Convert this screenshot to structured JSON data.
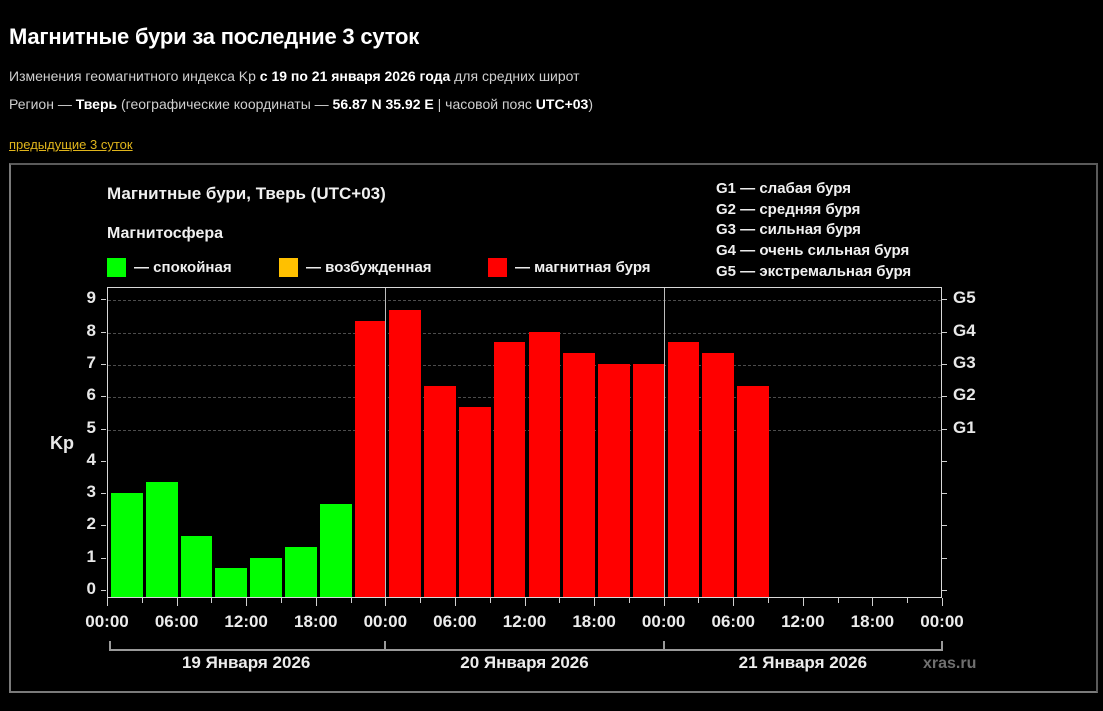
{
  "header": {
    "title": "Магнитные бури за последние 3 суток",
    "line1": {
      "pre": "Изменения геомагнитного индекса Kp ",
      "bold": "с 19 по 21 января 2026 года",
      "post": " для средних широт"
    },
    "line2": {
      "pre": "Регион — ",
      "region": "Тверь",
      "mid": " (географические координаты — ",
      "coords": "56.87 N 35.92 E",
      "mid2": " | часовой пояс ",
      "tz": "UTC+03",
      "post": ")"
    },
    "prev_link": "предыдущие 3 суток"
  },
  "legend": {
    "section_label": "Магнитосфера",
    "items": [
      {
        "label": "— спокойная",
        "color": "#00ff00"
      },
      {
        "label": "— возбужденная",
        "color": "#ffc000"
      },
      {
        "label": "— магнитная буря",
        "color": "#ff0000"
      }
    ],
    "gscale": [
      "G1 — слабая буря",
      "G2 — средняя буря",
      "G3 — сильная буря",
      "G4 — очень сильная буря",
      "G5 — экстремальная буря"
    ]
  },
  "watermark": "xras.ru",
  "chart_data": {
    "type": "bar",
    "title": "Магнитные бури, Тверь (UTC+03)",
    "xlabel": "",
    "ylabel": "Kp",
    "ylim": [
      0,
      9
    ],
    "yticks": [
      "0",
      "1",
      "2",
      "3",
      "4",
      "5",
      "6",
      "7",
      "8",
      "9"
    ],
    "right_axis": [
      {
        "label": "G1",
        "kp": 5
      },
      {
        "label": "G2",
        "kp": 6
      },
      {
        "label": "G3",
        "kp": 7
      },
      {
        "label": "G4",
        "kp": 8
      },
      {
        "label": "G5",
        "kp": 9
      }
    ],
    "grid": "dashed horizontal at Kp 5–9",
    "xtick_labels": [
      "00:00",
      "06:00",
      "12:00",
      "18:00",
      "00:00",
      "06:00",
      "12:00",
      "18:00",
      "00:00",
      "06:00",
      "12:00",
      "18:00",
      "00:00"
    ],
    "days": [
      "19 Января 2026",
      "20 Января 2026",
      "21 Января 2026"
    ],
    "interval_hours": 3,
    "categories": [
      "19.01 00-03",
      "19.01 03-06",
      "19.01 06-09",
      "19.01 09-12",
      "19.01 12-15",
      "19.01 15-18",
      "19.01 18-21",
      "19.01 21-24",
      "20.01 00-03",
      "20.01 03-06",
      "20.01 06-09",
      "20.01 09-12",
      "20.01 12-15",
      "20.01 15-18",
      "20.01 18-21",
      "20.01 21-24",
      "21.01 00-03",
      "21.01 03-06",
      "21.01 06-09"
    ],
    "values": [
      3.0,
      3.33,
      1.67,
      0.67,
      1.0,
      1.33,
      2.67,
      8.33,
      8.67,
      6.33,
      5.67,
      7.67,
      8.0,
      7.33,
      7.0,
      7.0,
      7.67,
      7.33,
      6.33
    ],
    "status": [
      "calm",
      "calm",
      "calm",
      "calm",
      "calm",
      "calm",
      "calm",
      "storm",
      "storm",
      "storm",
      "storm",
      "storm",
      "storm",
      "storm",
      "storm",
      "storm",
      "storm",
      "storm",
      "storm"
    ],
    "status_colors": {
      "calm": "#00ff00",
      "active": "#ffc000",
      "storm": "#ff0000"
    }
  }
}
